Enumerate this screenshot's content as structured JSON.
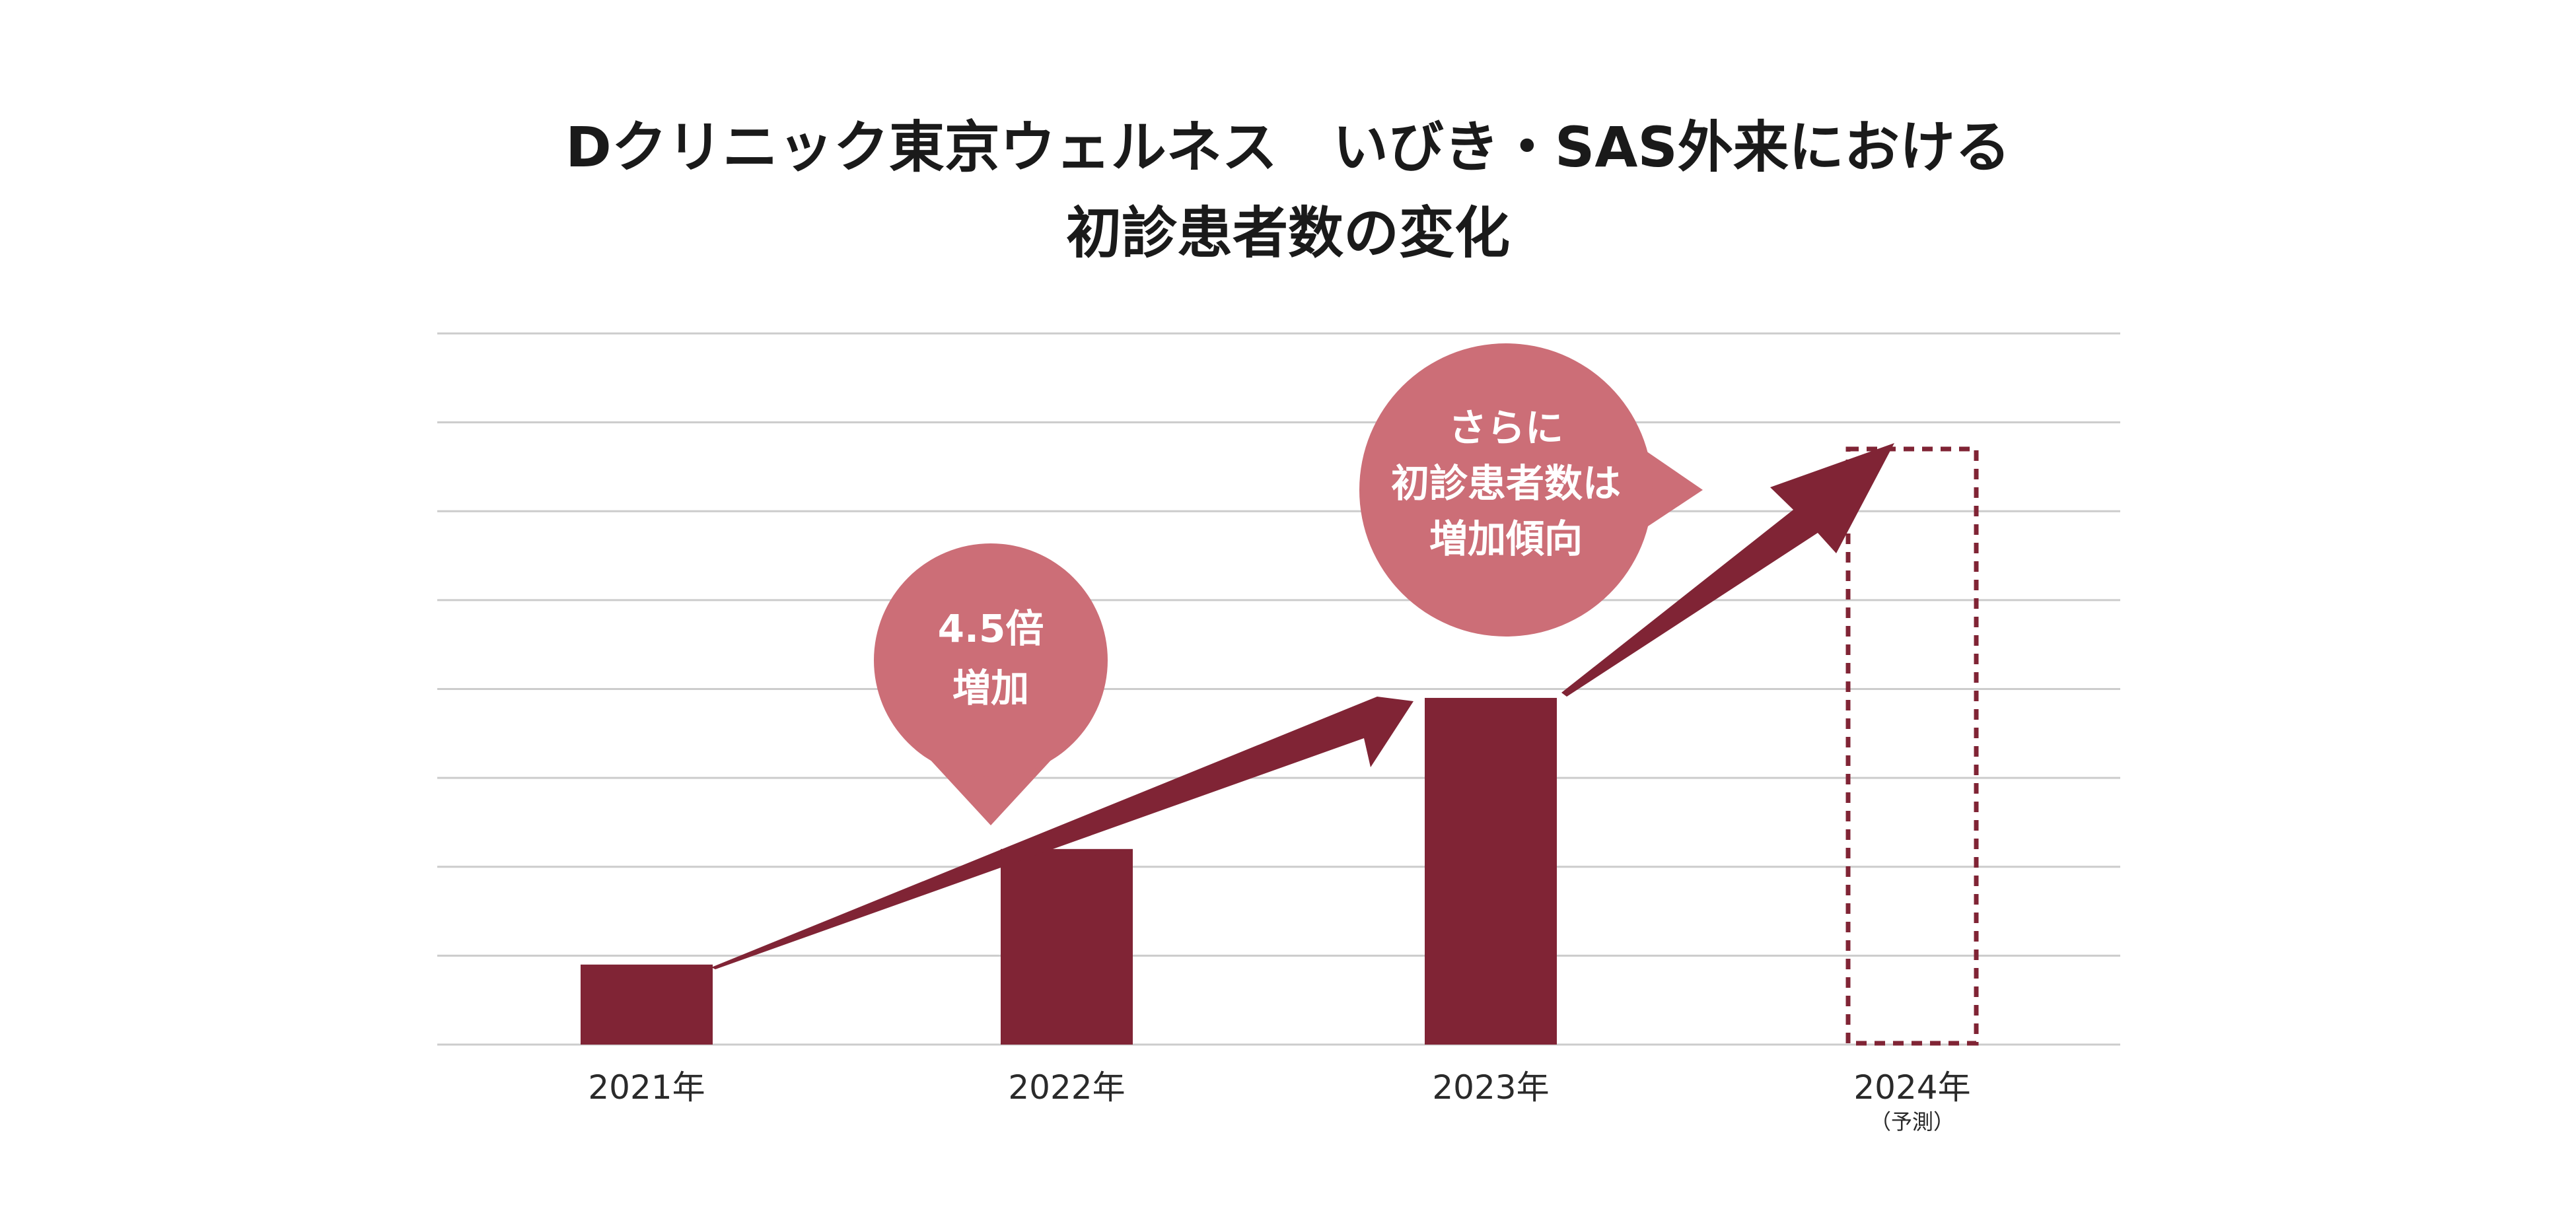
{
  "title": {
    "line1": "Dクリニック東京ウェルネス　いびき・SAS外来における",
    "line2": "初診患者数の変化"
  },
  "colors": {
    "bar": "#802435",
    "callout": "#cc6e77",
    "grid": "#cccccc",
    "text": "#1a1a1a"
  },
  "chart_data": {
    "type": "bar",
    "title": "Dクリニック東京ウェルネス　いびき・SAS外来における 初診患者数の変化",
    "xlabel": "",
    "ylabel": "",
    "categories": [
      "2021年",
      "2022年",
      "2023年",
      "2024年"
    ],
    "category_notes": [
      "",
      "",
      "",
      "（予測）"
    ],
    "values": [
      0.9,
      2.2,
      3.9,
      null
    ],
    "forecast": {
      "category": "2024年",
      "value": 6.7,
      "style": "dashed-outline"
    },
    "ylim": [
      0,
      8
    ],
    "grid": true,
    "y_ticks_shown": false,
    "annotations": [
      {
        "name": "callout-4-5x",
        "lines": [
          "4.5倍",
          "増加"
        ]
      },
      {
        "name": "callout-trend",
        "lines": [
          "さらに",
          "初診患者数は",
          "増加傾向"
        ]
      }
    ],
    "arrows": [
      {
        "from": "2021年",
        "to": "2023年"
      },
      {
        "from": "2023年",
        "to": "2024年"
      }
    ]
  }
}
